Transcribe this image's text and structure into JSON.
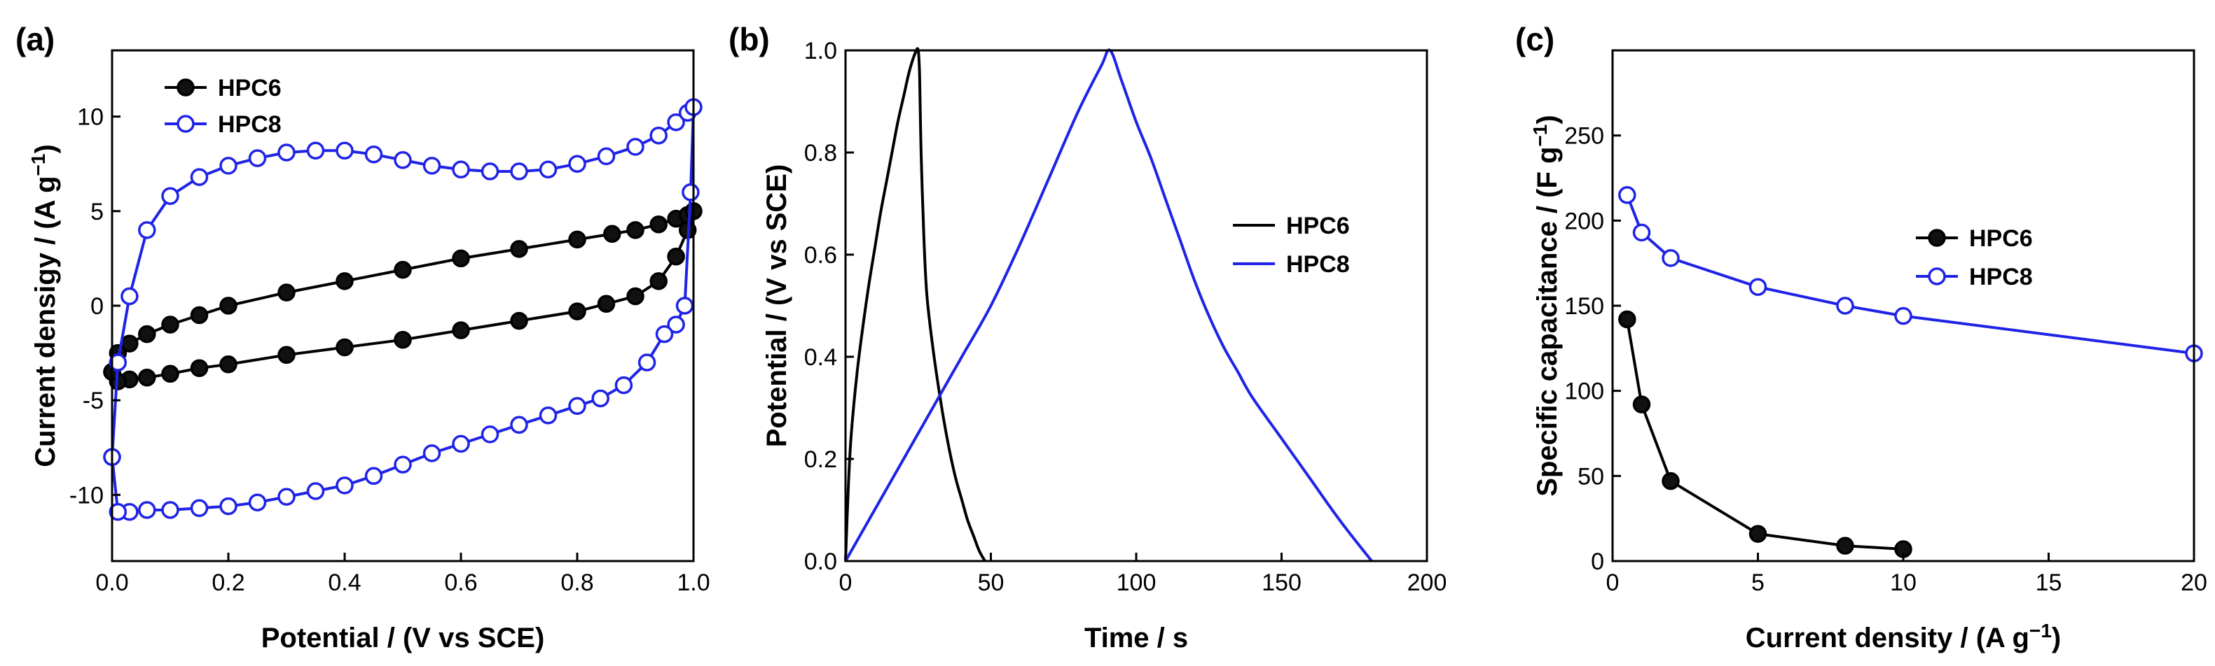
{
  "chart_data": [
    {
      "panel": "(a)",
      "type": "line",
      "xlabel": "Potential / (V vs SCE)",
      "ylabel": "Current densigy / (A g",
      "ylabel_sup": "−1",
      "ylabel_end": ")",
      "xlim": [
        0.0,
        1.0
      ],
      "ylim": [
        -13.5,
        13.5
      ],
      "xticks": [
        0.0,
        0.2,
        0.4,
        0.6,
        0.8,
        1.0
      ],
      "xtick_labels": [
        "0.0",
        "0.2",
        "0.4",
        "0.6",
        "0.8",
        "1.0"
      ],
      "yticks": [
        -10,
        -5,
        0,
        5,
        10
      ],
      "ytick_labels": [
        "-10",
        "-5",
        "0",
        "5",
        "10"
      ],
      "legend": [
        "HPC6",
        "HPC8"
      ],
      "legend_position": "top-left",
      "series": [
        {
          "name": "HPC6",
          "color": "#000000",
          "marker": "filled-circle",
          "x": [
            0.0,
            0.01,
            0.03,
            0.06,
            0.1,
            0.15,
            0.2,
            0.3,
            0.4,
            0.5,
            0.6,
            0.7,
            0.8,
            0.86,
            0.9,
            0.94,
            0.97,
            0.99,
            1.0,
            0.99,
            0.97,
            0.94,
            0.9,
            0.85,
            0.8,
            0.7,
            0.6,
            0.5,
            0.4,
            0.3,
            0.2,
            0.15,
            0.1,
            0.06,
            0.03,
            0.01,
            0.0
          ],
          "y": [
            -3.5,
            -2.5,
            -2.0,
            -1.5,
            -1.0,
            -0.5,
            0.0,
            0.7,
            1.3,
            1.9,
            2.5,
            3.0,
            3.5,
            3.8,
            4.0,
            4.3,
            4.6,
            4.8,
            5.0,
            4.0,
            2.6,
            1.3,
            0.5,
            0.1,
            -0.3,
            -0.8,
            -1.3,
            -1.8,
            -2.2,
            -2.6,
            -3.1,
            -3.3,
            -3.6,
            -3.8,
            -3.9,
            -4.0,
            -3.5
          ]
        },
        {
          "name": "HPC8",
          "color": "#1f23e6",
          "marker": "open-circle",
          "x": [
            0.0,
            0.01,
            0.03,
            0.06,
            0.1,
            0.15,
            0.2,
            0.25,
            0.3,
            0.35,
            0.4,
            0.45,
            0.5,
            0.55,
            0.6,
            0.65,
            0.7,
            0.75,
            0.8,
            0.85,
            0.9,
            0.94,
            0.97,
            0.99,
            1.0,
            0.995,
            0.985,
            0.97,
            0.95,
            0.92,
            0.88,
            0.84,
            0.8,
            0.75,
            0.7,
            0.65,
            0.6,
            0.55,
            0.5,
            0.45,
            0.4,
            0.35,
            0.3,
            0.25,
            0.2,
            0.15,
            0.1,
            0.06,
            0.03,
            0.01,
            0.0
          ],
          "y": [
            -8.0,
            -3.0,
            0.5,
            4.0,
            5.8,
            6.8,
            7.4,
            7.8,
            8.1,
            8.2,
            8.2,
            8.0,
            7.7,
            7.4,
            7.2,
            7.1,
            7.1,
            7.2,
            7.5,
            7.9,
            8.4,
            9.0,
            9.7,
            10.2,
            10.5,
            6.0,
            0.0,
            -1.0,
            -1.5,
            -3.0,
            -4.2,
            -4.9,
            -5.3,
            -5.8,
            -6.3,
            -6.8,
            -7.3,
            -7.8,
            -8.4,
            -9.0,
            -9.5,
            -9.8,
            -10.1,
            -10.4,
            -10.6,
            -10.7,
            -10.8,
            -10.8,
            -10.9,
            -10.9,
            -8.0
          ]
        }
      ]
    },
    {
      "panel": "(b)",
      "type": "line",
      "xlabel": "Time / s",
      "ylabel": "Potential / (V vs SCE)",
      "xlim": [
        0,
        200
      ],
      "ylim": [
        0.0,
        1.0
      ],
      "xticks": [
        0,
        50,
        100,
        150,
        200
      ],
      "xtick_labels": [
        "0",
        "50",
        "100",
        "150",
        "200"
      ],
      "yticks": [
        0.0,
        0.2,
        0.4,
        0.6,
        0.8,
        1.0
      ],
      "ytick_labels": [
        "0.0",
        "0.2",
        "0.4",
        "0.6",
        "0.8",
        "1.0"
      ],
      "legend": [
        "HPC6",
        "HPC8"
      ],
      "legend_position": "right",
      "series": [
        {
          "name": "HPC6",
          "color": "#000000",
          "marker": "none",
          "x": [
            0,
            1,
            2,
            4,
            6,
            8,
            10,
            12,
            14,
            16,
            18,
            20,
            22,
            24,
            25,
            25.5,
            26,
            27,
            28,
            30,
            32,
            34,
            36,
            38,
            40,
            42,
            44,
            46,
            48
          ],
          "y": [
            0.0,
            0.15,
            0.25,
            0.37,
            0.46,
            0.54,
            0.61,
            0.68,
            0.74,
            0.8,
            0.86,
            0.91,
            0.96,
            0.995,
            1.0,
            0.95,
            0.8,
            0.63,
            0.52,
            0.42,
            0.34,
            0.27,
            0.21,
            0.16,
            0.12,
            0.08,
            0.05,
            0.02,
            0.0
          ],
          "smooth": true
        },
        {
          "name": "HPC8",
          "color": "#1f23e6",
          "marker": "none",
          "x": [
            0,
            10,
            20,
            30,
            40,
            50,
            60,
            70,
            80,
            88,
            91,
            95,
            100,
            105,
            110,
            115,
            120,
            125,
            130,
            135,
            140,
            150,
            160,
            170,
            181
          ],
          "y": [
            0.0,
            0.1,
            0.2,
            0.3,
            0.4,
            0.5,
            0.62,
            0.75,
            0.88,
            0.97,
            1.0,
            0.94,
            0.86,
            0.79,
            0.71,
            0.63,
            0.55,
            0.48,
            0.42,
            0.37,
            0.32,
            0.24,
            0.16,
            0.08,
            0.0
          ],
          "smooth": true
        }
      ]
    },
    {
      "panel": "(c)",
      "type": "line",
      "xlabel": "Current density / (A g",
      "xlabel_sup": "−1",
      "xlabel_end": ")",
      "ylabel": "Specific capacitance / (F g",
      "ylabel_sup": "−1",
      "ylabel_end": ")",
      "xlim": [
        0,
        20
      ],
      "ylim": [
        0,
        300
      ],
      "xticks": [
        0,
        5,
        10,
        15,
        20
      ],
      "xtick_labels": [
        "0",
        "5",
        "10",
        "15",
        "20"
      ],
      "yticks": [
        0,
        50,
        100,
        150,
        200,
        250
      ],
      "ytick_labels": [
        "0",
        "50",
        "100",
        "150",
        "200",
        "250"
      ],
      "legend": [
        "HPC6",
        "HPC8"
      ],
      "legend_position": "right",
      "series": [
        {
          "name": "HPC6",
          "color": "#000000",
          "marker": "filled-circle",
          "x": [
            0.5,
            1,
            2,
            5,
            8,
            10
          ],
          "y": [
            142,
            92,
            47,
            16,
            9,
            7
          ]
        },
        {
          "name": "HPC8",
          "color": "#1f23e6",
          "marker": "open-circle",
          "x": [
            0.5,
            1,
            2,
            5,
            8,
            10,
            20
          ],
          "y": [
            215,
            193,
            178,
            161,
            150,
            144,
            122
          ]
        }
      ]
    }
  ]
}
